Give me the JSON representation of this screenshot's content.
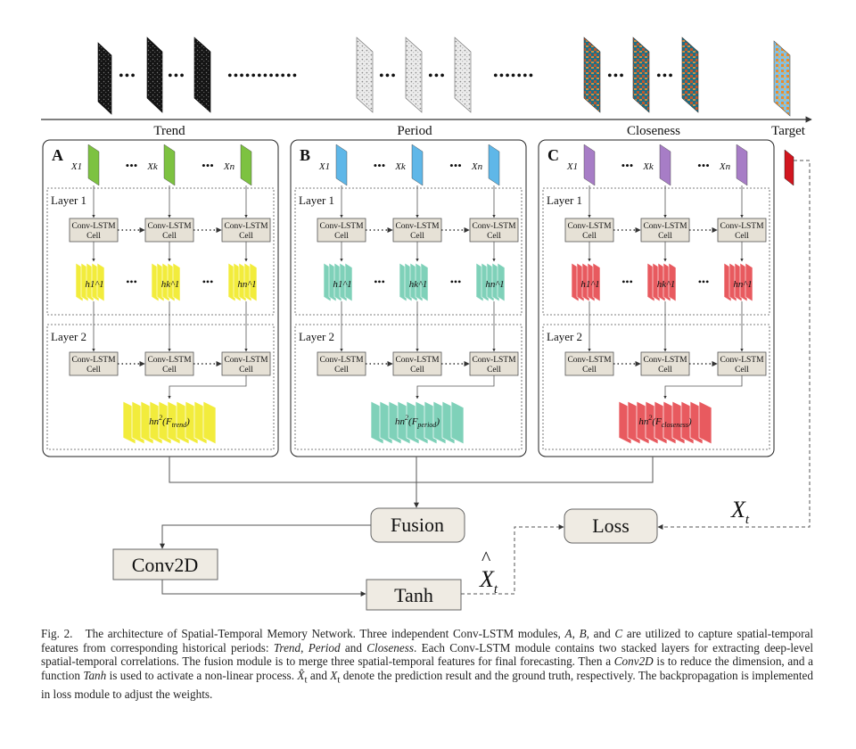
{
  "timeline": {
    "trend_label": "Trend",
    "period_label": "Period",
    "closeness_label": "Closeness",
    "target_label": "Target",
    "dots": "•••"
  },
  "modules": [
    {
      "letter": "A",
      "color": "#7dc241",
      "feature_color": "#f2ec3c",
      "inputs": [
        "X1",
        "Xk",
        "Xn"
      ],
      "hidden": [
        "h1^1",
        "hk^1",
        "hn^1"
      ],
      "output_main": "hn",
      "output_sup": "2",
      "output_func": "F",
      "output_sub": "trend"
    },
    {
      "letter": "B",
      "color": "#5fb7e8",
      "feature_color": "#7fd1b9",
      "inputs": [
        "X1",
        "Xk",
        "Xn"
      ],
      "hidden": [
        "h1^1",
        "hk^1",
        "hn^1"
      ],
      "output_main": "hn",
      "output_sup": "2",
      "output_func": "F",
      "output_sub": "period"
    },
    {
      "letter": "C",
      "color": "#a77dc6",
      "feature_color": "#e85a5f",
      "inputs": [
        "X1",
        "Xk",
        "Xn"
      ],
      "hidden": [
        "h1^1",
        "hk^1",
        "hn^1"
      ],
      "output_main": "hn",
      "output_sup": "2",
      "output_func": "F",
      "output_sub": "closeness"
    }
  ],
  "layers": {
    "layer1": "Layer 1",
    "layer2": "Layer 2"
  },
  "cell": {
    "line1": "Conv-LSTM",
    "line2": "Cell"
  },
  "blocks": {
    "fusion": "Fusion",
    "loss": "Loss",
    "conv2d": "Conv2D",
    "tanh": "Tanh"
  },
  "labels": {
    "xt": "X",
    "xt_sub": "t",
    "xhat": "X",
    "xhat_sub": "t"
  },
  "colors": {
    "target": "#d1161f",
    "block_fill": "#efebe3",
    "cell_fill": "#e6e1d6"
  },
  "caption": {
    "fig": "Fig. 2.",
    "p1": "The architecture of Spatial-Temporal Memory Network. Three independent Conv-LSTM modules, ",
    "a": "A",
    "sep1": ", ",
    "b": "B",
    "p2": ", and ",
    "c": "C",
    "p3": " are utilized to capture spatial-temporal features from corresponding historical periods: ",
    "trend": "Trend",
    "sep2": ", ",
    "period": "Period",
    "p4": " and ",
    "closeness": "Closeness",
    "p5": ". Each Conv-LSTM module contains two stacked layers for extracting deep-level spatial-temporal correlations. The fusion module is to merge three spatial-temporal features for final forecasting. Then a ",
    "conv2d": "Conv2D",
    "p6": " is to reduce the dimension, and a function ",
    "tanh": "Tanh",
    "p7": " is used to activate a non-linear process. ",
    "xhat": "X̂",
    "xhat_sub": "t",
    "p8": " and ",
    "x": "X",
    "x_sub": "t",
    "p9": " denote the prediction result and the ground truth, respectively. The backpropagation is implemented in loss module to adjust the weights."
  }
}
